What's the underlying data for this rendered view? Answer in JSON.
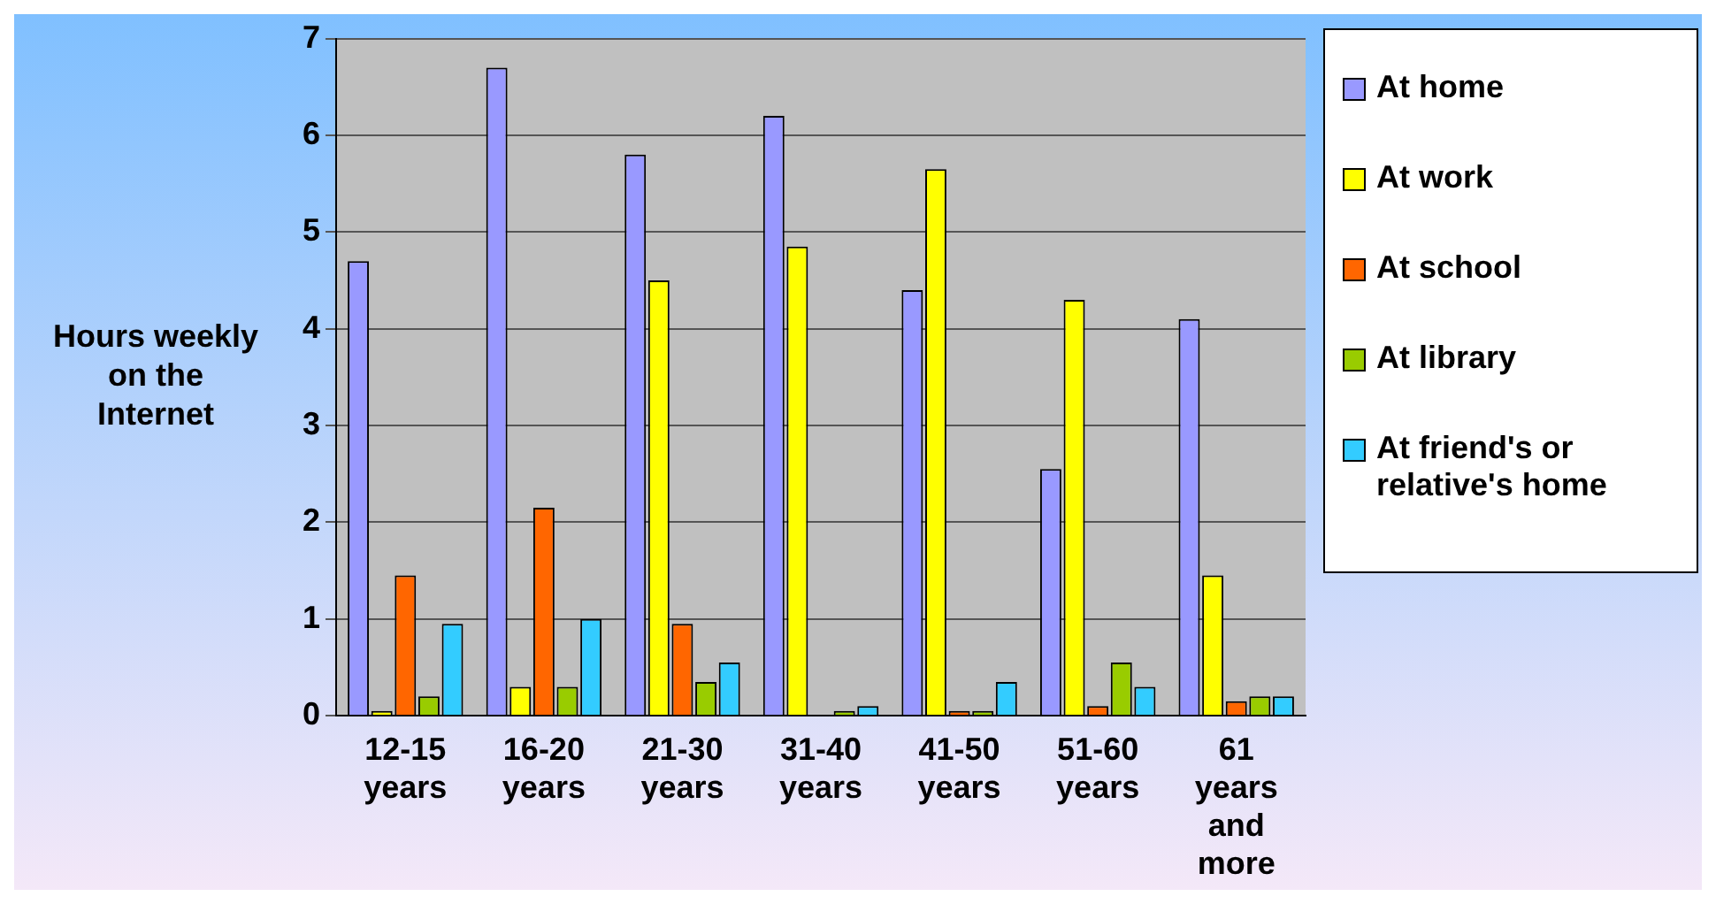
{
  "chart_data": {
    "type": "bar",
    "ylabel": "Hours weekly on the Internet",
    "categories": [
      "12-15 years",
      "16-20 years",
      "21-30 years",
      "31-40 years",
      "41-50 years",
      "51-60 years",
      "61 years and more"
    ],
    "series": [
      {
        "name": "At home",
        "color": "#9999ff",
        "values": [
          4.7,
          6.7,
          5.8,
          6.2,
          4.4,
          2.55,
          4.1
        ]
      },
      {
        "name": "At work",
        "color": "#ffff00",
        "values": [
          0.05,
          0.3,
          4.5,
          4.85,
          5.65,
          4.3,
          1.45
        ]
      },
      {
        "name": "At school",
        "color": "#ff6600",
        "values": [
          1.45,
          2.15,
          0.95,
          null,
          0.05,
          0.1,
          0.15
        ]
      },
      {
        "name": "At library",
        "color": "#99cc00",
        "values": [
          0.2,
          0.3,
          0.35,
          0.05,
          0.05,
          0.55,
          0.2
        ]
      },
      {
        "name": "At friend's or relative's home",
        "color": "#33ccff",
        "values": [
          0.95,
          1.0,
          0.55,
          0.1,
          0.35,
          0.3,
          0.2
        ]
      }
    ],
    "ylim": [
      0,
      7
    ],
    "yticks": [
      0,
      1,
      2,
      3,
      4,
      5,
      6,
      7
    ],
    "grid": "y",
    "legend": "right"
  }
}
